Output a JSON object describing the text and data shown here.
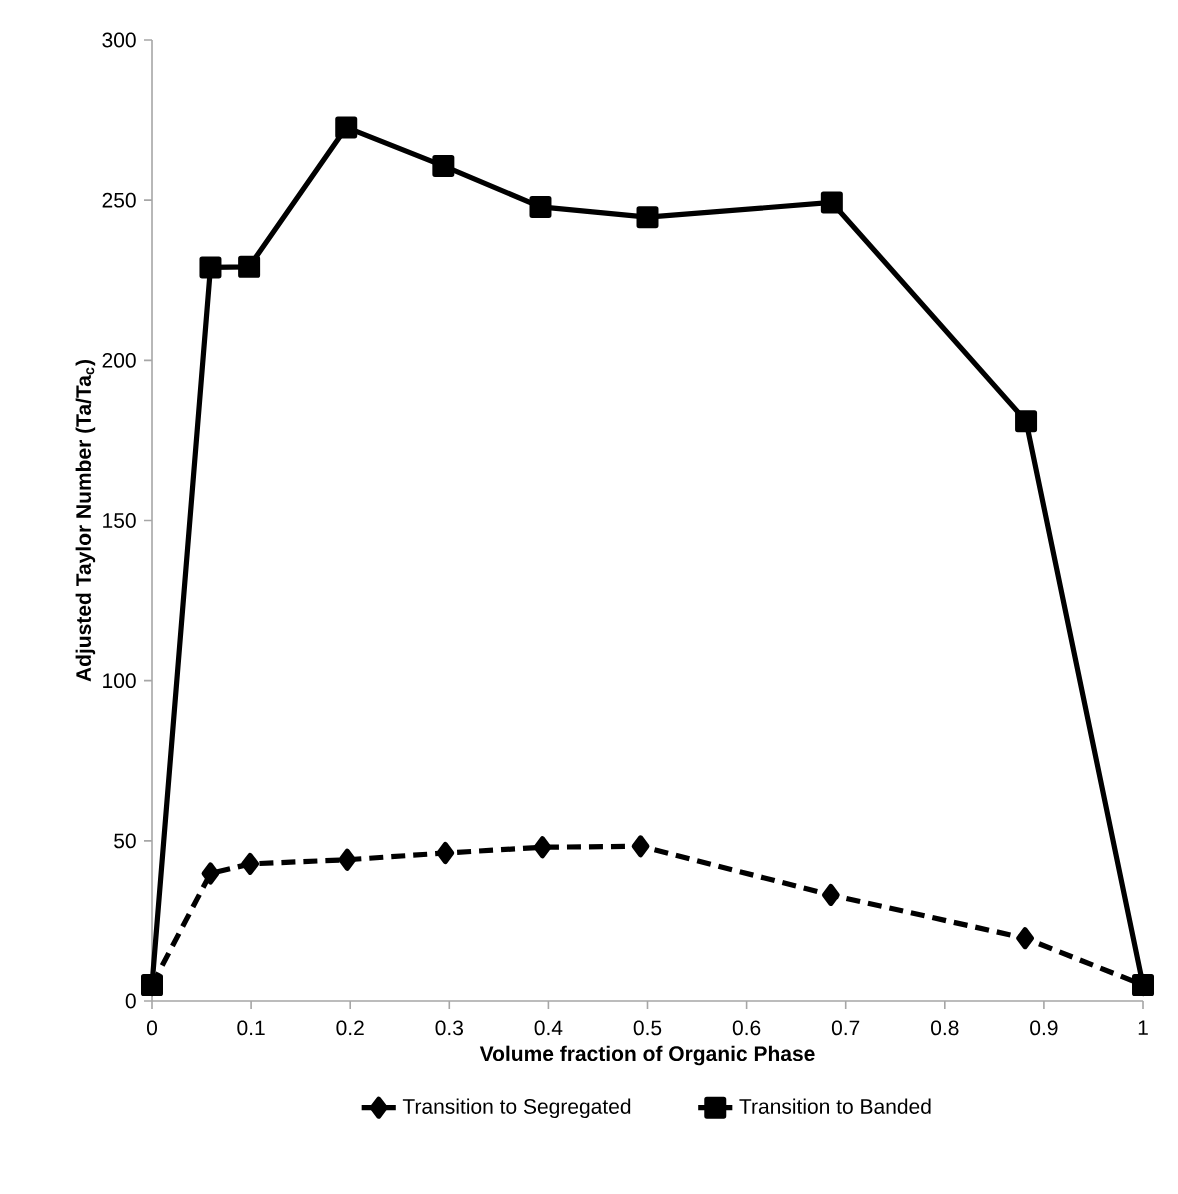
{
  "chart_data": {
    "type": "line",
    "xlabel": "Volume fraction of Organic Phase",
    "ylabel": "Adjusted Taylor Number (Ta/Ta$_{c}$)",
    "xlim": [
      0,
      1
    ],
    "ylim": [
      0,
      300
    ],
    "xticks": [
      0,
      0.1,
      0.2,
      0.3,
      0.4,
      0.5,
      0.6,
      0.7,
      0.8,
      0.9,
      1
    ],
    "yticks": [
      0,
      50,
      100,
      150,
      200,
      250,
      300
    ],
    "grid": false,
    "legend": "bottom",
    "series": [
      {
        "name": "Transition to Segregated",
        "color": "#000000",
        "marker": "diamond",
        "line_style": "dashed",
        "x": [
          0,
          0.059,
          0.099,
          0.197,
          0.296,
          0.394,
          0.493,
          0.685,
          0.881,
          1
        ],
        "values": [
          5,
          39.8,
          42.8,
          44.1,
          46.2,
          48,
          48.3,
          33.1,
          19.6,
          5
        ]
      },
      {
        "name": "Transition to Banded",
        "color": "#000000",
        "marker": "square",
        "line_style": "solid",
        "x": [
          0,
          0.059,
          0.098,
          0.196,
          0.294,
          0.392,
          0.5,
          0.686,
          0.882,
          1
        ],
        "values": [
          5,
          229,
          229.2,
          272.7,
          260.7,
          247.9,
          244.7,
          249.3,
          181,
          5
        ]
      }
    ]
  }
}
